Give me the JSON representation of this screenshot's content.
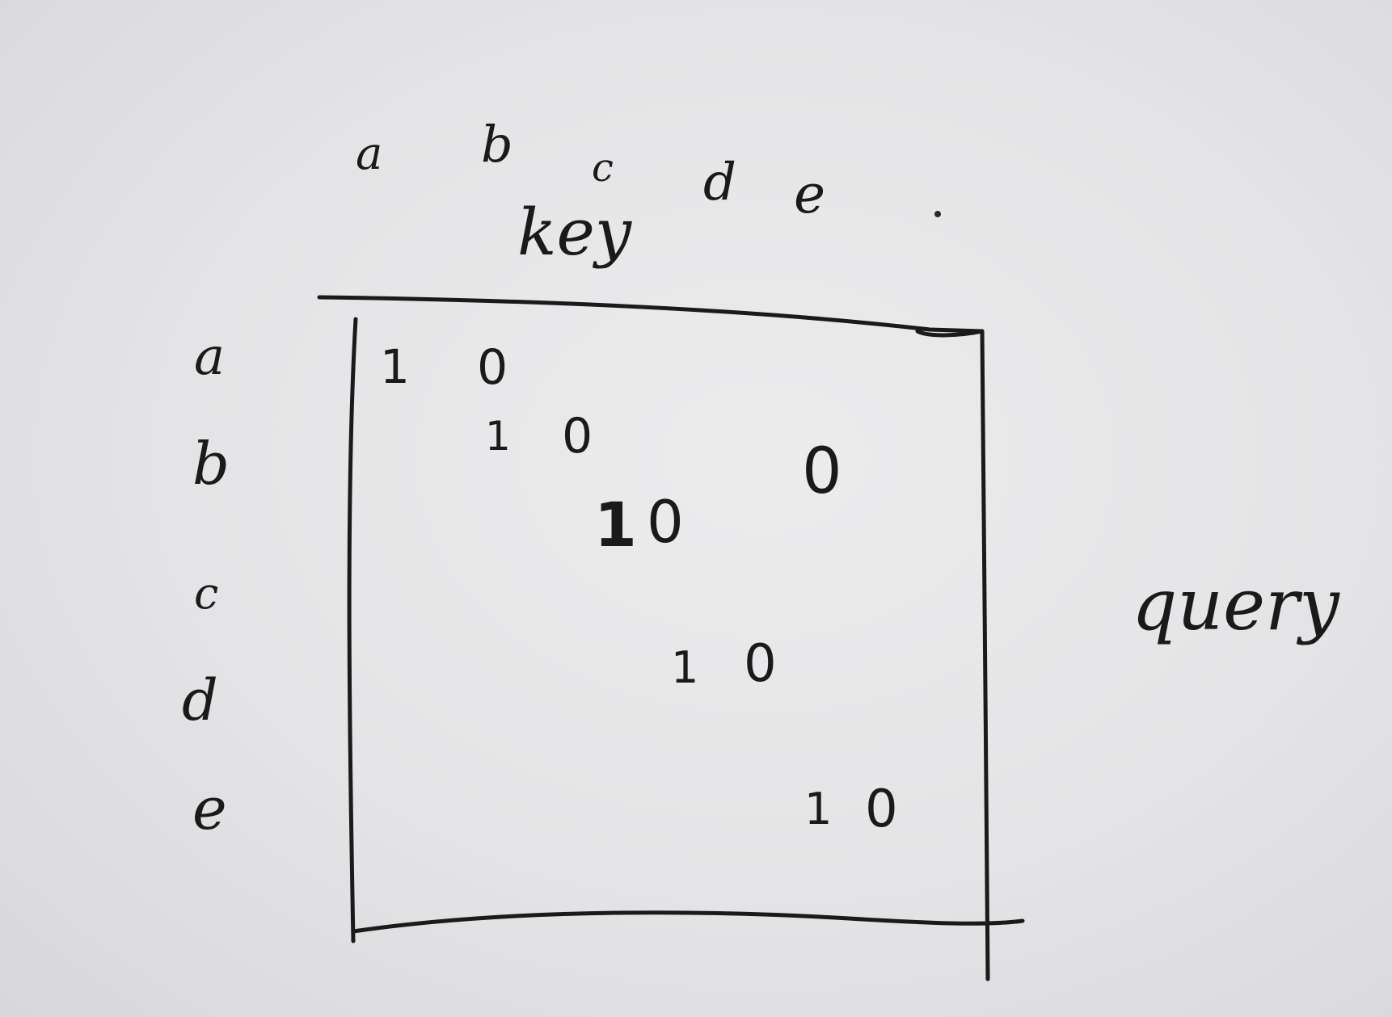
{
  "diagram": {
    "key_title": "key",
    "query_title": "query",
    "column_labels": [
      "a",
      "b",
      "c",
      "d",
      "e"
    ],
    "row_labels": [
      "a",
      "b",
      "c",
      "d",
      "e"
    ],
    "cells": [
      {
        "row": "a",
        "value": "1"
      },
      {
        "row": "a",
        "value": "0"
      },
      {
        "row": "b",
        "value": "1"
      },
      {
        "row": "b",
        "value": "0"
      },
      {
        "row": "b",
        "value": "0"
      },
      {
        "row": "c",
        "value": "1"
      },
      {
        "row": "c",
        "value": "0"
      },
      {
        "row": "d",
        "value": "1"
      },
      {
        "row": "d",
        "value": "0"
      },
      {
        "row": "e",
        "value": "1"
      },
      {
        "row": "e",
        "value": "0"
      }
    ]
  },
  "colors": {
    "paper": "#e6e6e8",
    "ink": "#1a1a1a"
  }
}
